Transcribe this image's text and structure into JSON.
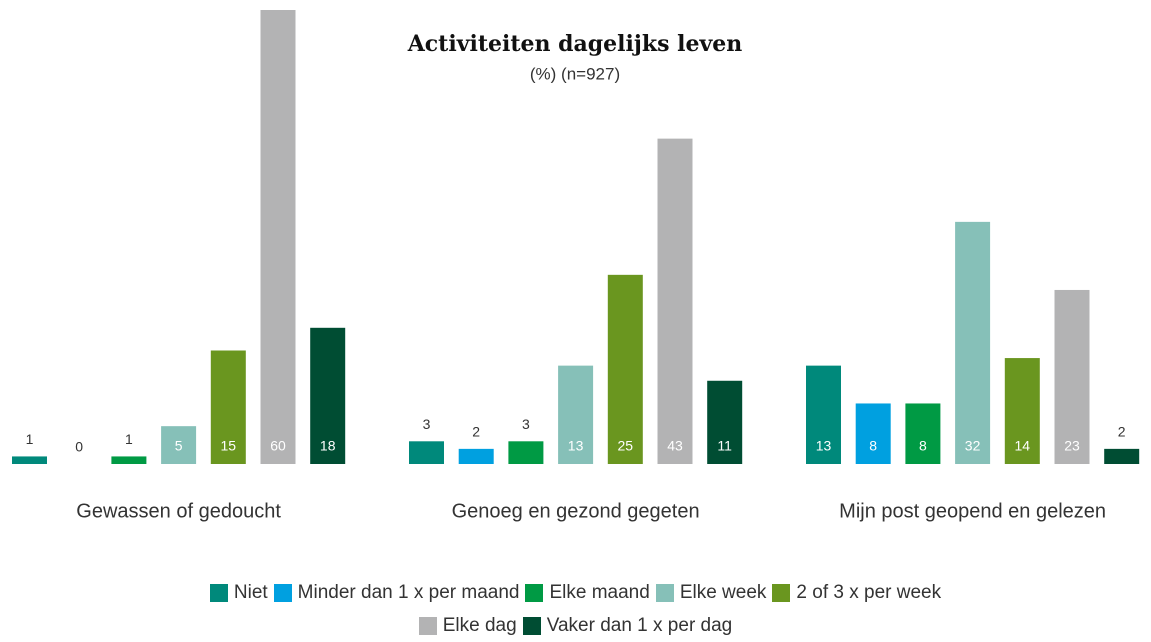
{
  "chart_data": {
    "type": "bar",
    "title": "Activiteiten dagelijks leven",
    "subtitle": "(%) (n=927)",
    "categories": [
      "Gewassen of gedoucht",
      "Genoeg en gezond gegeten",
      "Mijn post geopend en gelezen"
    ],
    "series": [
      {
        "name": "Niet",
        "color": "#00897b",
        "values": [
          1,
          3,
          13
        ]
      },
      {
        "name": "Minder dan 1 x per maand",
        "color": "#00a0e0",
        "values": [
          0,
          2,
          8
        ]
      },
      {
        "name": "Elke maand",
        "color": "#009a44",
        "values": [
          1,
          3,
          8
        ]
      },
      {
        "name": "Elke week",
        "color": "#86c0b8",
        "values": [
          5,
          13,
          32
        ]
      },
      {
        "name": "2 of 3 x per week",
        "color": "#6a961f",
        "values": [
          15,
          25,
          14
        ]
      },
      {
        "name": "Elke dag",
        "color": "#b3b3b4",
        "values": [
          60,
          43,
          23
        ]
      },
      {
        "name": "Vaker dan 1 x per dag",
        "color": "#004d33",
        "values": [
          18,
          11,
          2
        ]
      }
    ],
    "legend": "bottom"
  }
}
